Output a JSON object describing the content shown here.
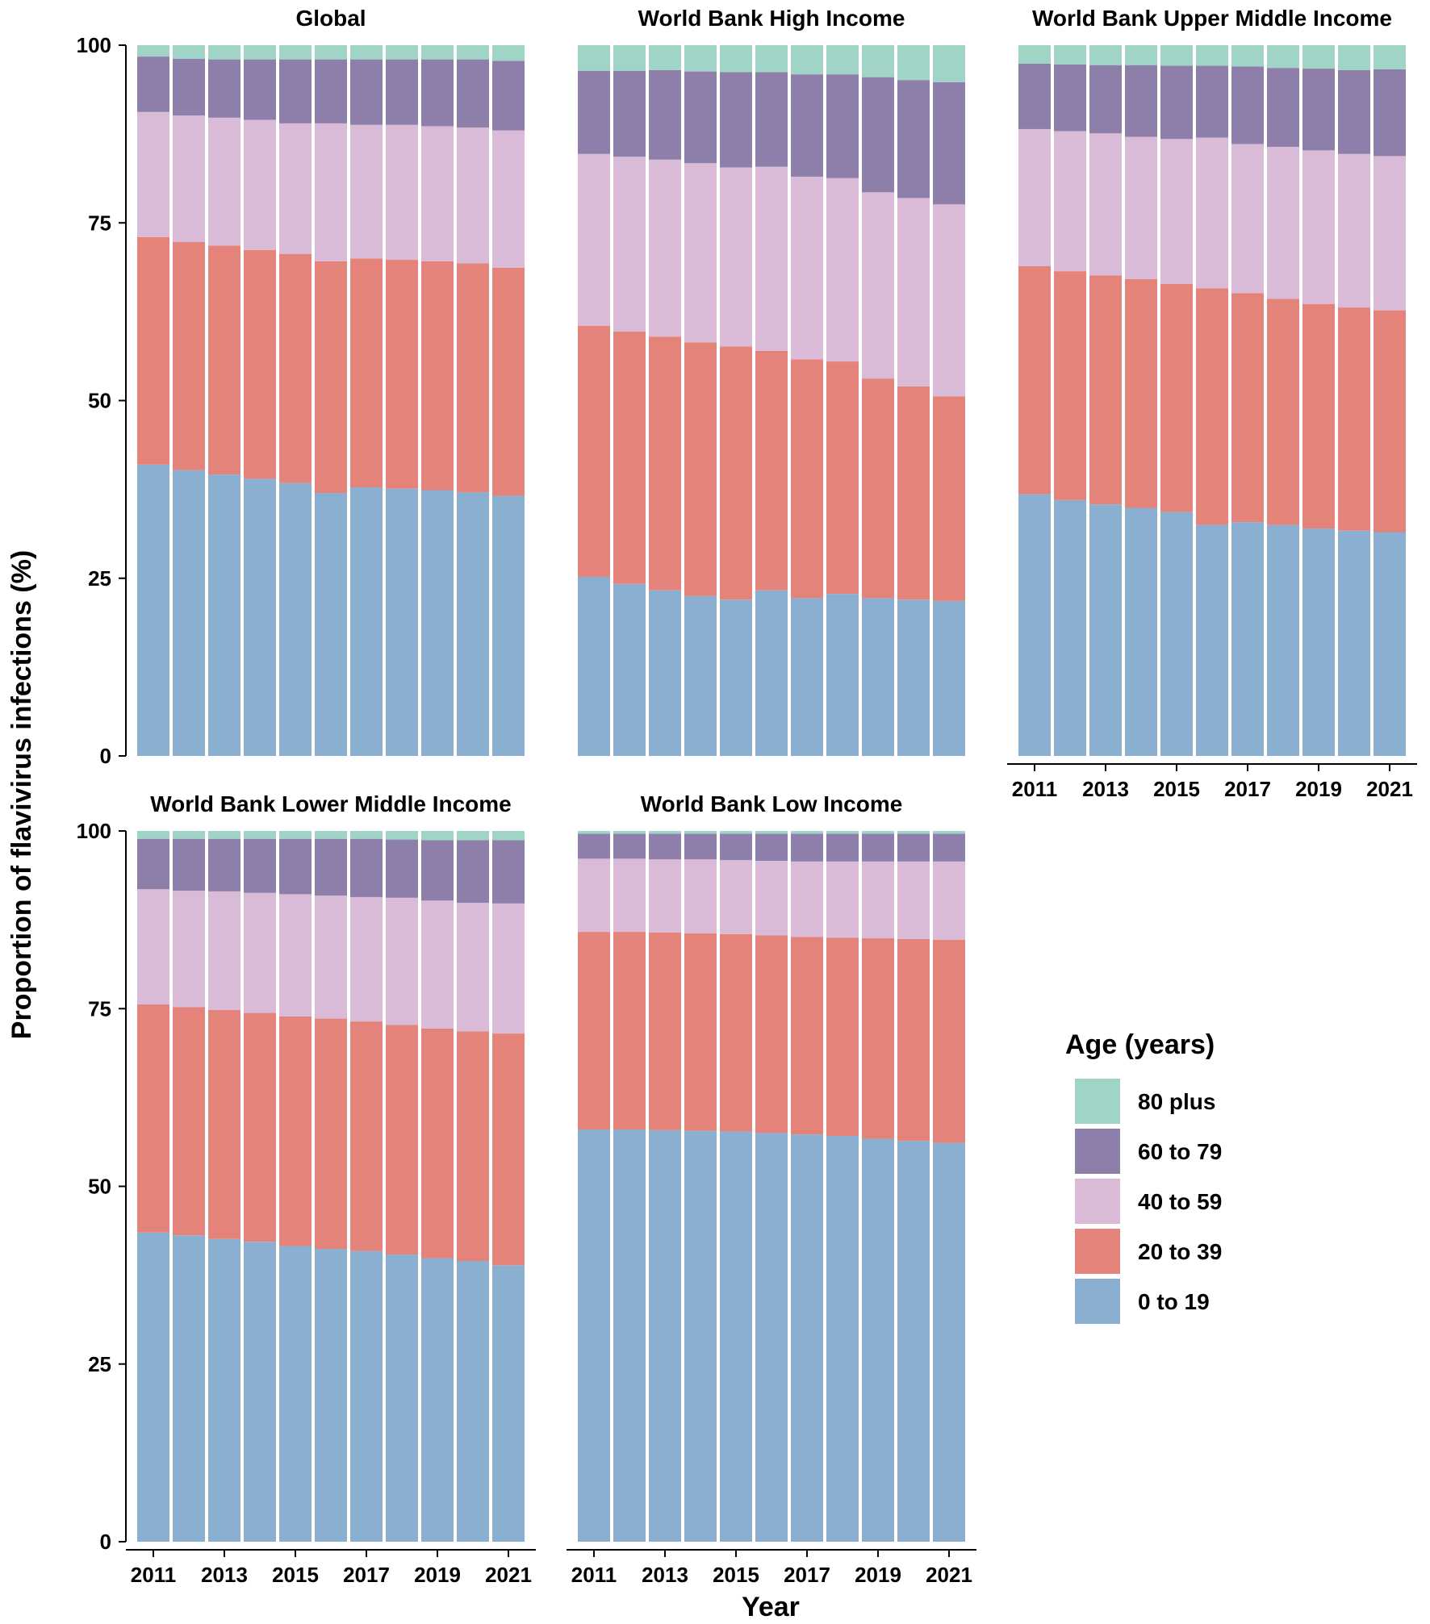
{
  "figure": {
    "ylabel": "Proportion of flavivirus infections  (%)",
    "xlabel": "Year",
    "legend": {
      "title": "Age (years)",
      "entries": [
        {
          "label": "80 plus",
          "color": "#9FD4C7"
        },
        {
          "label": "60 to 79",
          "color": "#8E7FAA"
        },
        {
          "label": "40 to 59",
          "color": "#D9BBD8"
        },
        {
          "label": "20 to 39",
          "color": "#E4837A"
        },
        {
          "label": "0 to 19",
          "color": "#8AAFD1"
        }
      ]
    }
  },
  "chart_data": [
    {
      "type": "bar",
      "stacked": true,
      "title": "Global",
      "categories": [
        "2011",
        "2012",
        "2013",
        "2014",
        "2015",
        "2016",
        "2017",
        "2018",
        "2019",
        "2020",
        "2021"
      ],
      "xtick_labels": [
        "2011",
        "2013",
        "2015",
        "2017",
        "2019",
        "2021"
      ],
      "ytick_labels": [
        "0",
        "25",
        "50",
        "75",
        "100"
      ],
      "ylim": [
        0,
        100
      ],
      "series": [
        {
          "name": "0 to 19",
          "values": [
            41.0,
            40.2,
            39.6,
            39.0,
            38.4,
            37.0,
            37.8,
            37.6,
            37.4,
            37.1,
            36.6
          ]
        },
        {
          "name": "20 to 39",
          "values": [
            32.0,
            32.1,
            32.2,
            32.2,
            32.2,
            32.6,
            32.2,
            32.2,
            32.2,
            32.2,
            32.1
          ]
        },
        {
          "name": "40 to 59",
          "values": [
            17.6,
            17.8,
            18.0,
            18.3,
            18.4,
            19.4,
            18.8,
            19.0,
            19.0,
            19.1,
            19.3
          ]
        },
        {
          "name": "60 to 79",
          "values": [
            7.8,
            8.0,
            8.2,
            8.5,
            9.0,
            9.0,
            9.2,
            9.2,
            9.4,
            9.6,
            9.8
          ]
        },
        {
          "name": "80 plus",
          "values": [
            1.6,
            1.9,
            2.0,
            2.0,
            2.0,
            2.0,
            2.0,
            2.0,
            2.0,
            2.0,
            2.2
          ]
        }
      ]
    },
    {
      "type": "bar",
      "stacked": true,
      "title": "World Bank High Income",
      "categories": [
        "2011",
        "2012",
        "2013",
        "2014",
        "2015",
        "2016",
        "2017",
        "2018",
        "2019",
        "2020",
        "2021"
      ],
      "xtick_labels": [
        "2011",
        "2013",
        "2015",
        "2017",
        "2019",
        "2021"
      ],
      "ytick_labels": [
        "0",
        "25",
        "50",
        "75",
        "100"
      ],
      "ylim": [
        0,
        100
      ],
      "series": [
        {
          "name": "0 to 19",
          "values": [
            25.2,
            24.2,
            23.3,
            22.5,
            22.0,
            23.3,
            22.2,
            22.8,
            22.2,
            22.0,
            21.8
          ]
        },
        {
          "name": "20 to 39",
          "values": [
            35.3,
            35.5,
            35.7,
            35.7,
            35.6,
            33.7,
            33.6,
            32.7,
            30.9,
            30.0,
            28.8
          ]
        },
        {
          "name": "40 to 59",
          "values": [
            24.2,
            24.6,
            24.9,
            25.2,
            25.2,
            25.9,
            25.7,
            25.8,
            26.2,
            26.5,
            27.0
          ]
        },
        {
          "name": "60 to 79",
          "values": [
            11.7,
            12.1,
            12.6,
            12.9,
            13.4,
            13.3,
            14.4,
            14.6,
            16.2,
            16.6,
            17.2
          ]
        },
        {
          "name": "80 plus",
          "values": [
            3.6,
            3.6,
            3.5,
            3.7,
            3.8,
            3.8,
            4.1,
            4.1,
            4.5,
            4.9,
            5.2
          ]
        }
      ]
    },
    {
      "type": "bar",
      "stacked": true,
      "title": "World Bank Upper Middle Income",
      "categories": [
        "2011",
        "2012",
        "2013",
        "2014",
        "2015",
        "2016",
        "2017",
        "2018",
        "2019",
        "2020",
        "2021"
      ],
      "xtick_labels": [
        "2011",
        "2013",
        "2015",
        "2017",
        "2019",
        "2021"
      ],
      "ytick_labels": [
        "0",
        "25",
        "50",
        "75",
        "100"
      ],
      "ylim": [
        0,
        100
      ],
      "series": [
        {
          "name": "0 to 19",
          "values": [
            36.8,
            36.0,
            35.4,
            34.9,
            34.3,
            32.5,
            32.9,
            32.5,
            32.0,
            31.7,
            31.5
          ]
        },
        {
          "name": "20 to 39",
          "values": [
            32.1,
            32.2,
            32.2,
            32.2,
            32.1,
            33.3,
            32.2,
            31.8,
            31.6,
            31.4,
            31.2
          ]
        },
        {
          "name": "40 to 59",
          "values": [
            19.3,
            19.7,
            20.0,
            20.0,
            20.4,
            21.2,
            21.0,
            21.4,
            21.6,
            21.6,
            21.7
          ]
        },
        {
          "name": "60 to 79",
          "values": [
            9.2,
            9.4,
            9.6,
            10.1,
            10.3,
            10.1,
            10.9,
            11.1,
            11.5,
            11.8,
            12.2
          ]
        },
        {
          "name": "80 plus",
          "values": [
            2.6,
            2.7,
            2.8,
            2.8,
            2.9,
            2.9,
            3.0,
            3.2,
            3.3,
            3.5,
            3.4
          ]
        }
      ]
    },
    {
      "type": "bar",
      "stacked": true,
      "title": "World Bank Lower Middle Income",
      "categories": [
        "2011",
        "2012",
        "2013",
        "2014",
        "2015",
        "2016",
        "2017",
        "2018",
        "2019",
        "2020",
        "2021"
      ],
      "xtick_labels": [
        "2011",
        "2013",
        "2015",
        "2017",
        "2019",
        "2021"
      ],
      "ytick_labels": [
        "0",
        "25",
        "50",
        "75",
        "100"
      ],
      "ylim": [
        0,
        100
      ],
      "series": [
        {
          "name": "0 to 19",
          "values": [
            43.5,
            43.1,
            42.6,
            42.2,
            41.6,
            41.2,
            40.9,
            40.4,
            39.9,
            39.5,
            38.9
          ]
        },
        {
          "name": "20 to 39",
          "values": [
            32.1,
            32.1,
            32.2,
            32.2,
            32.3,
            32.4,
            32.3,
            32.3,
            32.3,
            32.3,
            32.6
          ]
        },
        {
          "name": "40 to 59",
          "values": [
            16.2,
            16.4,
            16.7,
            16.9,
            17.2,
            17.3,
            17.5,
            17.9,
            18.0,
            18.1,
            18.3
          ]
        },
        {
          "name": "60 to 79",
          "values": [
            7.1,
            7.3,
            7.4,
            7.6,
            7.8,
            8.0,
            8.2,
            8.2,
            8.5,
            8.8,
            8.9
          ]
        },
        {
          "name": "80 plus",
          "values": [
            1.1,
            1.1,
            1.1,
            1.1,
            1.1,
            1.1,
            1.1,
            1.2,
            1.3,
            1.3,
            1.3
          ]
        }
      ]
    },
    {
      "type": "bar",
      "stacked": true,
      "title": "World Bank Low Income",
      "categories": [
        "2011",
        "2012",
        "2013",
        "2014",
        "2015",
        "2016",
        "2017",
        "2018",
        "2019",
        "2020",
        "2021"
      ],
      "xtick_labels": [
        "2011",
        "2013",
        "2015",
        "2017",
        "2019",
        "2021"
      ],
      "ytick_labels": [
        "0",
        "25",
        "50",
        "75",
        "100"
      ],
      "ylim": [
        0,
        100
      ],
      "series": [
        {
          "name": "0 to 19",
          "values": [
            58.0,
            58.0,
            57.9,
            57.8,
            57.7,
            57.5,
            57.3,
            57.1,
            56.7,
            56.4,
            56.1
          ]
        },
        {
          "name": "20 to 39",
          "values": [
            27.8,
            27.8,
            27.8,
            27.8,
            27.8,
            27.8,
            27.8,
            27.9,
            28.2,
            28.4,
            28.6
          ]
        },
        {
          "name": "40 to 59",
          "values": [
            10.3,
            10.3,
            10.3,
            10.4,
            10.4,
            10.5,
            10.6,
            10.7,
            10.8,
            10.9,
            11.0
          ]
        },
        {
          "name": "60 to 79",
          "values": [
            3.5,
            3.5,
            3.6,
            3.6,
            3.7,
            3.8,
            3.9,
            3.9,
            3.9,
            3.9,
            3.9
          ]
        },
        {
          "name": "80 plus",
          "values": [
            0.4,
            0.4,
            0.4,
            0.4,
            0.4,
            0.4,
            0.4,
            0.4,
            0.4,
            0.4,
            0.4
          ]
        }
      ]
    }
  ]
}
